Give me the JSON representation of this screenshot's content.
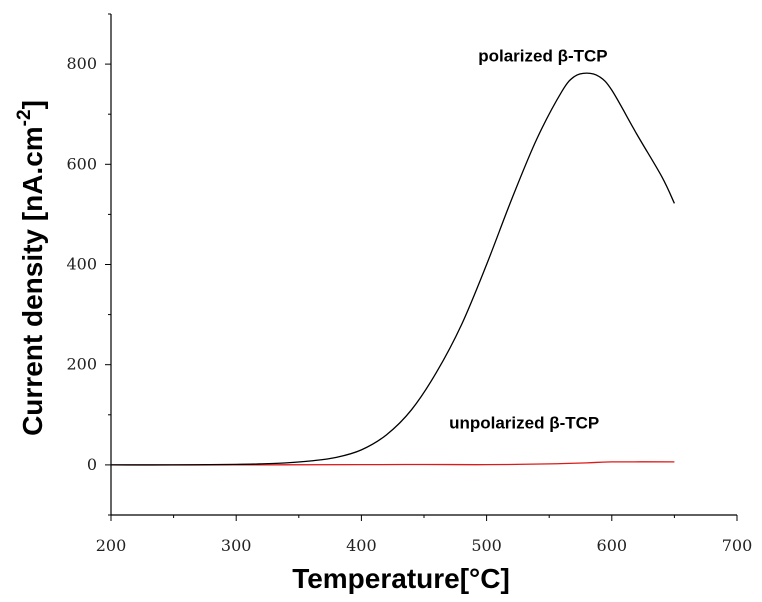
{
  "chart_data": {
    "type": "line",
    "title": "",
    "xlabel": "Temperature[°C]",
    "ylabel": {
      "main": "Current density [nA.cm",
      "superscript": "-2",
      "close": "]"
    },
    "xlim": [
      200,
      700
    ],
    "ylim": [
      -100,
      900
    ],
    "xticks": [
      200,
      300,
      400,
      500,
      600,
      700
    ],
    "yticks": [
      0,
      200,
      400,
      600,
      800
    ],
    "grid": false,
    "series": [
      {
        "name": "polarized β-TCP",
        "color": "#000000",
        "x": [
          200,
          250,
          300,
          320,
          340,
          360,
          380,
          400,
          420,
          440,
          460,
          480,
          500,
          520,
          540,
          560,
          570,
          580,
          590,
          600,
          620,
          640,
          650
        ],
        "y": [
          0,
          0,
          1,
          2,
          4,
          8,
          15,
          30,
          60,
          110,
          185,
          280,
          400,
          530,
          650,
          745,
          775,
          782,
          775,
          748,
          660,
          575,
          522
        ]
      },
      {
        "name": "unpolarized β-TCP",
        "color": "#dd1a1a",
        "x": [
          200,
          300,
          400,
          450,
          500,
          550,
          580,
          600,
          650
        ],
        "y": [
          0,
          0,
          0.5,
          0.8,
          0.5,
          2,
          4,
          6,
          6
        ]
      }
    ],
    "annotations": [
      {
        "text": "polarized β-TCP",
        "x": 545,
        "y": 805
      },
      {
        "text": "unpolarized β-TCP",
        "x": 530,
        "y": 73
      }
    ]
  }
}
